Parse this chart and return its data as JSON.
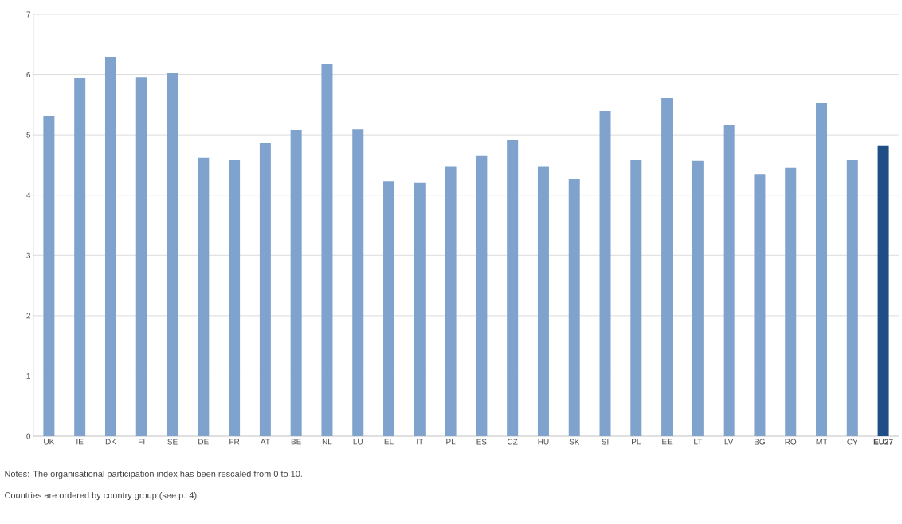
{
  "chart_data": {
    "type": "bar",
    "categories": [
      "UK",
      "IE",
      "DK",
      "FI",
      "SE",
      "DE",
      "FR",
      "AT",
      "BE",
      "NL",
      "LU",
      "EL",
      "IT",
      "PL",
      "ES",
      "CZ",
      "HU",
      "SK",
      "SI",
      "PL",
      "EE",
      "LT",
      "LV",
      "BG",
      "RO",
      "MT",
      "CY",
      "**EU27**"
    ],
    "values": [
      5.32,
      5.94,
      6.3,
      5.95,
      6.02,
      4.62,
      4.58,
      4.87,
      5.08,
      6.18,
      5.09,
      4.23,
      4.21,
      4.48,
      4.66,
      4.91,
      4.48,
      4.26,
      5.4,
      4.58,
      5.61,
      4.57,
      5.16,
      4.35,
      4.45,
      5.53,
      4.58,
      4.82
    ],
    "colors": [
      "#7fa3cc",
      "#7fa3cc",
      "#7fa3cc",
      "#7fa3cc",
      "#7fa3cc",
      "#7fa3cc",
      "#7fa3cc",
      "#7fa3cc",
      "#7fa3cc",
      "#7fa3cc",
      "#7fa3cc",
      "#7fa3cc",
      "#7fa3cc",
      "#7fa3cc",
      "#7fa3cc",
      "#7fa3cc",
      "#7fa3cc",
      "#7fa3cc",
      "#7fa3cc",
      "#7fa3cc",
      "#7fa3cc",
      "#7fa3cc",
      "#7fa3cc",
      "#7fa3cc",
      "#7fa3cc",
      "#7fa3cc",
      "#7fa3cc",
      "#1f4e85"
    ],
    "ylim": [
      0,
      7
    ],
    "yticks": [
      0,
      1,
      2,
      3,
      4,
      5,
      6,
      7
    ],
    "grid": "y",
    "annotations": [
      "Notes: The organisational participation index has been rescaled from 0 to 10.",
      "Countries are ordered by country group (see p. 4)."
    ]
  }
}
